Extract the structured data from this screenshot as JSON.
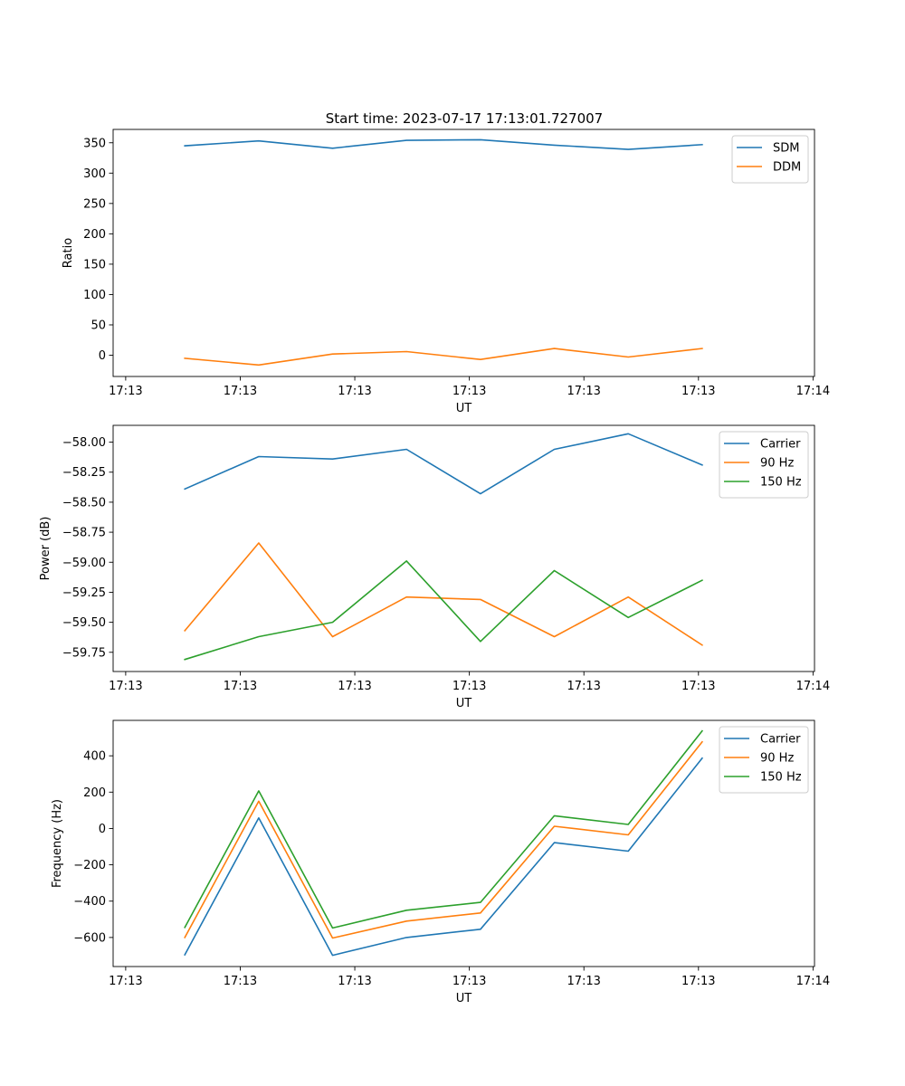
{
  "figure_title": "Start time: 2023-07-17 17:13:01.727007",
  "colors": {
    "series1": "#1f77b4",
    "series2": "#ff7f0e",
    "series3": "#2ca02c",
    "axes": "#000000",
    "legend_border": "#cccccc"
  },
  "chart_data": [
    {
      "type": "line",
      "title": "Start time: 2023-07-17 17:13:01.727007",
      "xlabel": "UT",
      "ylabel": "Ratio",
      "x": [
        1,
        2,
        3,
        4,
        5,
        6,
        7,
        8
      ],
      "x_ticks": [
        0.2,
        1.75,
        3.3,
        4.85,
        6.4,
        7.95,
        9.5
      ],
      "x_tick_labels": [
        "17:13",
        "17:13",
        "17:13",
        "17:13",
        "17:13",
        "17:13",
        "17:14"
      ],
      "xlim": [
        0.03,
        9.52
      ],
      "ylim": [
        -35,
        372
      ],
      "y_ticks": [
        0,
        50,
        100,
        150,
        200,
        250,
        300,
        350
      ],
      "y_tick_labels": [
        "0",
        "50",
        "100",
        "150",
        "200",
        "250",
        "300",
        "350"
      ],
      "legend_position": "upper right",
      "series": [
        {
          "name": "SDM",
          "color": "#1f77b4",
          "values": [
            345,
            353,
            341,
            354,
            355,
            346,
            339,
            347
          ]
        },
        {
          "name": "DDM",
          "color": "#ff7f0e",
          "values": [
            -5,
            -16,
            2,
            6,
            -7,
            11,
            -3,
            11
          ]
        }
      ]
    },
    {
      "type": "line",
      "xlabel": "UT",
      "ylabel": "Power (dB)",
      "x": [
        1,
        2,
        3,
        4,
        5,
        6,
        7,
        8
      ],
      "x_ticks": [
        0.2,
        1.75,
        3.3,
        4.85,
        6.4,
        7.95,
        9.5
      ],
      "x_tick_labels": [
        "17:13",
        "17:13",
        "17:13",
        "17:13",
        "17:13",
        "17:13",
        "17:14"
      ],
      "xlim": [
        0.03,
        9.52
      ],
      "ylim": [
        -59.91,
        -57.86
      ],
      "y_ticks": [
        -58.0,
        -58.25,
        -58.5,
        -58.75,
        -59.0,
        -59.25,
        -59.5,
        -59.75
      ],
      "y_tick_labels": [
        "−58.00",
        "−58.25",
        "−58.50",
        "−58.75",
        "−59.00",
        "−59.25",
        "−59.50",
        "−59.75"
      ],
      "legend_position": "upper right",
      "series": [
        {
          "name": "Carrier",
          "color": "#1f77b4",
          "values": [
            -58.39,
            -58.12,
            -58.14,
            -58.06,
            -58.43,
            -58.06,
            -57.93,
            -58.19
          ]
        },
        {
          "name": "90 Hz",
          "color": "#ff7f0e",
          "values": [
            -59.57,
            -58.84,
            -59.62,
            -59.29,
            -59.31,
            -59.62,
            -59.29,
            -59.69
          ]
        },
        {
          "name": "150 Hz",
          "color": "#2ca02c",
          "values": [
            -59.81,
            -59.62,
            -59.5,
            -58.99,
            -59.66,
            -59.07,
            -59.46,
            -59.15
          ]
        }
      ]
    },
    {
      "type": "line",
      "xlabel": "UT",
      "ylabel": "Frequency (Hz)",
      "x": [
        1,
        2,
        3,
        4,
        5,
        6,
        7,
        8
      ],
      "x_ticks": [
        0.2,
        1.75,
        3.3,
        4.85,
        6.4,
        7.95,
        9.5
      ],
      "x_tick_labels": [
        "17:13",
        "17:13",
        "17:13",
        "17:13",
        "17:13",
        "17:13",
        "17:14"
      ],
      "xlim": [
        0.03,
        9.52
      ],
      "ylim": [
        -760,
        595
      ],
      "y_ticks": [
        400,
        200,
        0,
        -200,
        -400,
        -600
      ],
      "y_tick_labels": [
        "400",
        "200",
        "0",
        "−200",
        "−400",
        "−600"
      ],
      "legend_position": "upper right",
      "series": [
        {
          "name": "Carrier",
          "color": "#1f77b4",
          "values": [
            -695,
            58,
            -698,
            -600,
            -555,
            -78,
            -125,
            387
          ]
        },
        {
          "name": "90 Hz",
          "color": "#ff7f0e",
          "values": [
            -600,
            150,
            -603,
            -510,
            -465,
            12,
            -35,
            477
          ]
        },
        {
          "name": "150 Hz",
          "color": "#2ca02c",
          "values": [
            -545,
            207,
            -548,
            -450,
            -407,
            70,
            22,
            537
          ]
        }
      ]
    }
  ]
}
